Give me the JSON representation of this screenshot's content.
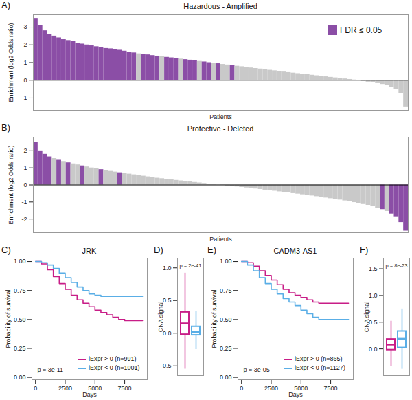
{
  "chart_data": [
    {
      "type": "bar",
      "panel": "A)",
      "title": "Hazardous - Amplified",
      "x_label": "Patients",
      "y_label": "Enrichment (log2 Odds ratio)",
      "ylim": [
        -1.7,
        3.7
      ],
      "yticks": [
        -1,
        0,
        1,
        2,
        3
      ],
      "legend": "top-right",
      "legend_entries": [
        {
          "name": "FDR ≤ 0.05",
          "color": "#8b4ea6"
        }
      ],
      "values": [
        3.5,
        3.1,
        2.8,
        2.6,
        2.5,
        2.4,
        2.3,
        2.25,
        2.2,
        2.1,
        2.05,
        2.0,
        1.95,
        1.9,
        1.85,
        1.8,
        1.78,
        1.75,
        1.7,
        1.65,
        1.6,
        1.55,
        1.5,
        1.47,
        1.44,
        1.4,
        1.37,
        1.33,
        1.3,
        1.27,
        1.24,
        1.2,
        1.17,
        1.14,
        1.1,
        1.07,
        1.04,
        1.0,
        0.97,
        0.94,
        0.9,
        0.87,
        0.84,
        0.8,
        0.77,
        0.74,
        0.7,
        0.67,
        0.64,
        0.6,
        0.57,
        0.54,
        0.5,
        0.47,
        0.44,
        0.41,
        0.38,
        0.35,
        0.32,
        0.29,
        0.26,
        0.23,
        0.2,
        0.17,
        0.14,
        0.11,
        0.08,
        0.05,
        0.02,
        -0.02,
        -0.06,
        -0.1,
        -0.14,
        -0.18,
        -0.23,
        -0.3,
        -0.38,
        -0.5,
        -0.75,
        -1.5
      ],
      "colors": [
        "#8b4ea6",
        "#8b4ea6",
        "#8b4ea6",
        "#8b4ea6",
        "#8b4ea6",
        "#8b4ea6",
        "#8b4ea6",
        "#8b4ea6",
        "#8b4ea6",
        "#8b4ea6",
        "#8b4ea6",
        "#8b4ea6",
        "#8b4ea6",
        "#8b4ea6",
        "#8b4ea6",
        "#8b4ea6",
        "#8b4ea6",
        "#8b4ea6",
        "#8b4ea6",
        "#8b4ea6",
        "#8b4ea6",
        "#8b4ea6",
        "#c9c9c9",
        "#8b4ea6",
        "#8b4ea6",
        "#8b4ea6",
        "#8b4ea6",
        "#c9c9c9",
        "#8b4ea6",
        "#8b4ea6",
        "#8b4ea6",
        "#c9c9c9",
        "#8b4ea6",
        "#8b4ea6",
        "#8b4ea6",
        "#c9c9c9",
        "#8b4ea6",
        "#8b4ea6",
        "#c9c9c9",
        "#8b4ea6",
        "#c9c9c9",
        "#c9c9c9",
        "#8b4ea6",
        "#c9c9c9",
        "#c9c9c9",
        "#c9c9c9",
        "#c9c9c9",
        "#c9c9c9",
        "#c9c9c9",
        "#c9c9c9",
        "#c9c9c9",
        "#c9c9c9",
        "#c9c9c9",
        "#c9c9c9",
        "#c9c9c9",
        "#c9c9c9",
        "#c9c9c9",
        "#c9c9c9",
        "#c9c9c9",
        "#c9c9c9",
        "#c9c9c9",
        "#c9c9c9",
        "#c9c9c9",
        "#c9c9c9",
        "#c9c9c9",
        "#c9c9c9",
        "#c9c9c9",
        "#c9c9c9",
        "#c9c9c9",
        "#c9c9c9",
        "#c9c9c9",
        "#c9c9c9",
        "#c9c9c9",
        "#c9c9c9",
        "#c9c9c9",
        "#c9c9c9",
        "#c9c9c9",
        "#c9c9c9",
        "#c9c9c9",
        "#c9c9c9"
      ]
    },
    {
      "type": "bar",
      "panel": "B)",
      "title": "Protective - Deleted",
      "x_label": "Patients",
      "y_label": "Enrichment (log2 Odds ratio)",
      "ylim": [
        -2.8,
        2.8
      ],
      "yticks": [
        -2,
        -1,
        0,
        1,
        2
      ],
      "values": [
        2.5,
        2.0,
        1.8,
        1.65,
        1.55,
        1.45,
        1.38,
        1.3,
        1.24,
        1.18,
        1.12,
        1.06,
        1.0,
        0.95,
        0.9,
        0.85,
        0.8,
        0.76,
        0.72,
        0.68,
        0.64,
        0.6,
        0.56,
        0.52,
        0.48,
        0.44,
        0.4,
        0.37,
        0.34,
        0.3,
        0.27,
        0.24,
        0.21,
        0.18,
        0.15,
        0.12,
        0.09,
        0.06,
        0.03,
        0.01,
        -0.02,
        -0.05,
        -0.08,
        -0.11,
        -0.14,
        -0.17,
        -0.2,
        -0.23,
        -0.26,
        -0.3,
        -0.33,
        -0.36,
        -0.4,
        -0.43,
        -0.46,
        -0.5,
        -0.53,
        -0.57,
        -0.6,
        -0.64,
        -0.68,
        -0.72,
        -0.76,
        -0.8,
        -0.84,
        -0.88,
        -0.93,
        -0.98,
        -1.03,
        -1.08,
        -1.14,
        -1.2,
        -1.27,
        -1.35,
        -1.44,
        -1.55,
        -1.7,
        -1.9,
        -2.2,
        -2.7
      ],
      "colors": [
        "#8b4ea6",
        "#8b4ea6",
        "#8b4ea6",
        "#8b4ea6",
        "#c9c9c9",
        "#8b4ea6",
        "#c9c9c9",
        "#8b4ea6",
        "#c9c9c9",
        "#c9c9c9",
        "#8b4ea6",
        "#c9c9c9",
        "#c9c9c9",
        "#c9c9c9",
        "#8b4ea6",
        "#c9c9c9",
        "#c9c9c9",
        "#c9c9c9",
        "#8b4ea6",
        "#c9c9c9",
        "#c9c9c9",
        "#c9c9c9",
        "#c9c9c9",
        "#c9c9c9",
        "#c9c9c9",
        "#c9c9c9",
        "#c9c9c9",
        "#c9c9c9",
        "#c9c9c9",
        "#c9c9c9",
        "#c9c9c9",
        "#c9c9c9",
        "#c9c9c9",
        "#c9c9c9",
        "#c9c9c9",
        "#c9c9c9",
        "#c9c9c9",
        "#c9c9c9",
        "#c9c9c9",
        "#c9c9c9",
        "#c9c9c9",
        "#c9c9c9",
        "#c9c9c9",
        "#c9c9c9",
        "#c9c9c9",
        "#c9c9c9",
        "#c9c9c9",
        "#c9c9c9",
        "#c9c9c9",
        "#c9c9c9",
        "#c9c9c9",
        "#c9c9c9",
        "#c9c9c9",
        "#c9c9c9",
        "#c9c9c9",
        "#c9c9c9",
        "#c9c9c9",
        "#c9c9c9",
        "#c9c9c9",
        "#c9c9c9",
        "#c9c9c9",
        "#c9c9c9",
        "#c9c9c9",
        "#c9c9c9",
        "#c9c9c9",
        "#c9c9c9",
        "#c9c9c9",
        "#c9c9c9",
        "#c9c9c9",
        "#c9c9c9",
        "#c9c9c9",
        "#c9c9c9",
        "#c9c9c9",
        "#c9c9c9",
        "#8b4ea6",
        "#c9c9c9",
        "#8b4ea6",
        "#8b4ea6",
        "#8b4ea6",
        "#8b4ea6"
      ]
    },
    {
      "type": "line",
      "panel": "C)",
      "title": "JRK",
      "x_label": "Days",
      "y_label": "Probability of survival",
      "xlim": [
        -300,
        9400
      ],
      "xticks": [
        0,
        2500,
        5000,
        7500
      ],
      "ylim": [
        -0.02,
        1.03
      ],
      "yticks": [
        {
          "value": 0,
          "label": "0.00"
        },
        {
          "value": 0.25,
          "label": "0.25"
        },
        {
          "value": 0.5,
          "label": "0.50"
        },
        {
          "value": 0.75,
          "label": "0.75"
        },
        {
          "value": 1,
          "label": "1.00"
        }
      ],
      "annotations": [
        "p = 3e-11"
      ],
      "legend": "bottom-right",
      "series": [
        {
          "name": "iExpr > 0 (n=991)",
          "color": "#c81d87",
          "line_style": "step",
          "x": [
            0,
            500,
            1000,
            1500,
            2000,
            2500,
            3000,
            3500,
            4000,
            4500,
            5000,
            5500,
            6000,
            6500,
            7000,
            7500,
            9000
          ],
          "values": [
            1,
            0.98,
            0.93,
            0.87,
            0.81,
            0.76,
            0.71,
            0.67,
            0.64,
            0.61,
            0.58,
            0.56,
            0.54,
            0.52,
            0.5,
            0.49,
            0.49
          ]
        },
        {
          "name": "iExpr < 0 (n=1001)",
          "color": "#5aaee6",
          "line_style": "step",
          "x": [
            0,
            500,
            1000,
            1500,
            2000,
            2500,
            3000,
            3500,
            4000,
            4500,
            5000,
            5500,
            6000,
            9000
          ],
          "values": [
            1,
            0.99,
            0.97,
            0.94,
            0.9,
            0.86,
            0.82,
            0.78,
            0.75,
            0.72,
            0.71,
            0.7,
            0.7,
            0.7
          ]
        }
      ]
    },
    {
      "type": "box",
      "panel": "D)",
      "y_label": "CNA signal",
      "ylim": [
        -0.65,
        1.15
      ],
      "yticks": [
        {
          "value": -0.5,
          "label": "-0.5"
        },
        {
          "value": 0,
          "label": "0.0"
        },
        {
          "value": 0.5,
          "label": "0.5"
        },
        {
          "value": 1,
          "label": "1.0"
        }
      ],
      "annotations": [
        "p = 2e-41"
      ],
      "colors": [
        "#c81d87",
        "#5aaee6"
      ],
      "whisker_low": [
        -0.55,
        -0.25
      ],
      "q1": [
        -0.02,
        -0.03
      ],
      "median": [
        0.15,
        0.02
      ],
      "q3": [
        0.32,
        0.1
      ],
      "whisker_high": [
        0.92,
        0.33
      ]
    },
    {
      "type": "line",
      "panel": "E)",
      "title": "CADM3-AS1",
      "x_label": "Days",
      "y_label": "Probability of survival",
      "xlim": [
        -300,
        9400
      ],
      "xticks": [
        0,
        2500,
        5000,
        7500
      ],
      "ylim": [
        -0.02,
        1.03
      ],
      "yticks": [
        {
          "value": 0,
          "label": "0.00"
        },
        {
          "value": 0.25,
          "label": "0.25"
        },
        {
          "value": 0.5,
          "label": "0.50"
        },
        {
          "value": 0.75,
          "label": "0.75"
        },
        {
          "value": 1,
          "label": "1.00"
        }
      ],
      "annotations": [
        "p = 3e-05"
      ],
      "legend": "bottom-right",
      "series": [
        {
          "name": "iExpr > 0 (n=865)",
          "color": "#c81d87",
          "line_style": "step",
          "x": [
            0,
            500,
            1000,
            1500,
            2000,
            2500,
            3000,
            3500,
            4000,
            4500,
            5000,
            5500,
            6000,
            6500,
            9000
          ],
          "values": [
            1,
            0.99,
            0.96,
            0.92,
            0.88,
            0.84,
            0.8,
            0.76,
            0.73,
            0.71,
            0.69,
            0.67,
            0.65,
            0.64,
            0.64
          ]
        },
        {
          "name": "iExpr < 0 (n=1127)",
          "color": "#5aaee6",
          "line_style": "step",
          "x": [
            0,
            500,
            1000,
            1500,
            2000,
            2500,
            3000,
            3500,
            4000,
            4500,
            5000,
            5500,
            6000,
            6500,
            9000
          ],
          "values": [
            1,
            0.97,
            0.92,
            0.86,
            0.81,
            0.76,
            0.72,
            0.68,
            0.65,
            0.62,
            0.58,
            0.55,
            0.52,
            0.5,
            0.5
          ]
        }
      ]
    },
    {
      "type": "box",
      "panel": "F)",
      "y_label": "CNA signal",
      "ylim": [
        -0.5,
        1.7
      ],
      "yticks": [
        {
          "value": 0,
          "label": "0.0"
        },
        {
          "value": 0.5,
          "label": "0.5"
        },
        {
          "value": 1,
          "label": "1.0"
        },
        {
          "value": 1.5,
          "label": "1.5"
        }
      ],
      "annotations": [
        "p = 8e-23"
      ],
      "colors": [
        "#c81d87",
        "#5aaee6"
      ],
      "whisker_low": [
        -0.33,
        -0.38
      ],
      "q1": [
        -0.02,
        0.02
      ],
      "median": [
        0.08,
        0.19
      ],
      "q3": [
        0.18,
        0.33
      ],
      "whisker_high": [
        0.52,
        0.75
      ]
    }
  ]
}
